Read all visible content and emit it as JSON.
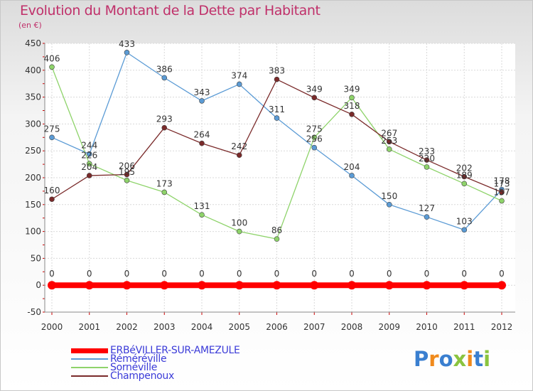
{
  "title": "Evolution du Montant de la Dette par Habitant",
  "subtitle": "(en €)",
  "chart_data": {
    "type": "line",
    "title": "Evolution du Montant de la Dette par Habitant",
    "subtitle": "(en €)",
    "x": [
      "2000",
      "2001",
      "2002",
      "2003",
      "2004",
      "2005",
      "2006",
      "2007",
      "2008",
      "2009",
      "2010",
      "2011",
      "2012"
    ],
    "ylim": [
      -50,
      450
    ],
    "yticks": [
      -50,
      0,
      50,
      100,
      150,
      200,
      250,
      300,
      350,
      400,
      450
    ],
    "grid": true,
    "legend_position": "bottom-left",
    "series": [
      {
        "name": "ERBéVILLER-SUR-AMEZULE",
        "color": "#ff0000",
        "values": [
          0,
          0,
          0,
          0,
          0,
          0,
          0,
          0,
          0,
          0,
          0,
          0,
          0
        ],
        "labels": [
          "0",
          "0",
          "0",
          "0",
          "0",
          "0",
          "0",
          "0",
          "0",
          "0",
          "0",
          "0",
          "0"
        ]
      },
      {
        "name": "Réméréville",
        "color": "#5b9bd5",
        "values": [
          275,
          244,
          433,
          386,
          343,
          374,
          311,
          256,
          204,
          150,
          127,
          103,
          178
        ],
        "labels": [
          "275",
          "244",
          "433",
          "386",
          "343",
          "374",
          "311",
          "256",
          "204",
          "150",
          "127",
          "103",
          "178"
        ]
      },
      {
        "name": "Sornéville",
        "color": "#8ed36a",
        "values": [
          406,
          226,
          195,
          173,
          131,
          100,
          86,
          275,
          349,
          253,
          220,
          189,
          157
        ],
        "labels": [
          "406",
          "226",
          "195",
          "173",
          "131",
          "100",
          "86",
          "275",
          "349",
          "253",
          "220",
          "189",
          "157"
        ]
      },
      {
        "name": "Champenoux",
        "color": "#7a2a2a",
        "values": [
          160,
          204,
          206,
          293,
          264,
          242,
          383,
          349,
          318,
          267,
          233,
          202,
          173
        ],
        "labels": [
          "160",
          "204",
          "206",
          "293",
          "264",
          "242",
          "383",
          "349",
          "318",
          "267",
          "233",
          "202",
          "173"
        ]
      }
    ]
  },
  "logo": {
    "letters": [
      {
        "char": "P",
        "color": "#3a7fd0"
      },
      {
        "char": "r",
        "color": "#f08a1c"
      },
      {
        "char": "o",
        "color": "#3a7fd0"
      },
      {
        "char": "x",
        "color": "#8ac43f"
      },
      {
        "char": "i",
        "color": "#f08a1c"
      },
      {
        "char": "t",
        "color": "#3a7fd0"
      },
      {
        "char": "i",
        "color": "#8ac43f"
      }
    ]
  }
}
